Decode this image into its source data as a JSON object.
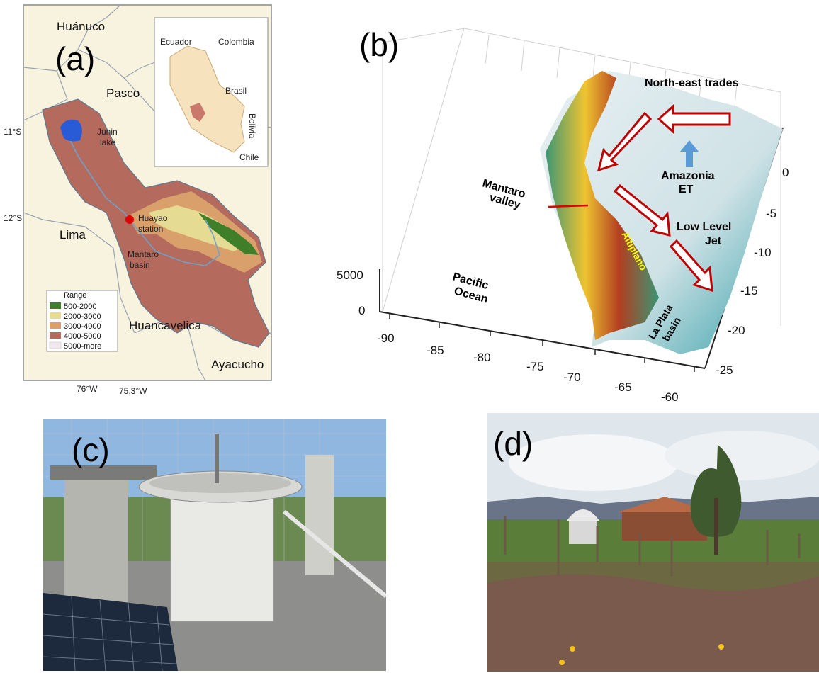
{
  "panel_a": {
    "label": "(a)",
    "regions": {
      "huanuco": "Huánuco",
      "pasco": "Pasco",
      "lima": "Lima",
      "huancavelica": "Huancavelica",
      "ayacucho": "Ayacucho"
    },
    "features": {
      "junin_lake_1": "Junin",
      "junin_lake_2": "lake",
      "station_1": "Huayao",
      "station_2": "station",
      "basin_1": "Mantaro",
      "basin_2": "basin"
    },
    "inset": {
      "ecuador": "Ecuador",
      "colombia": "Colombia",
      "brasil": "Brasil",
      "bolivia": "Bolivia",
      "chile": "Chile"
    },
    "lat_labels": [
      "11°S",
      "12°S"
    ],
    "lon_labels": [
      "76°W",
      "75.3°W"
    ],
    "legend": {
      "title": "Range",
      "items": [
        {
          "label": "500-2000",
          "color": "#3f7f2a"
        },
        {
          "label": "2000-3000",
          "color": "#e6db93"
        },
        {
          "label": "3000-4000",
          "color": "#d9a06b"
        },
        {
          "label": "4000-5000",
          "color": "#b46a5c"
        },
        {
          "label": "5000-more",
          "color": "#f2e9ee"
        }
      ]
    }
  },
  "panel_b": {
    "label": "(b)",
    "annotations": {
      "ne_trades": "North-east trades",
      "amazonia_1": "Amazonia",
      "amazonia_2": "ET",
      "mantaro_1": "Mantaro",
      "mantaro_2": "valley",
      "llj_1": "Low Level",
      "llj_2": "Jet",
      "pacific_1": "Pacific",
      "pacific_2": "Ocean",
      "altiplano": "Altiplano",
      "plata_1": "La Plata",
      "plata_2": "basin"
    },
    "x_ticks": [
      "-90",
      "-85",
      "-80",
      "-75",
      "-70",
      "-65",
      "-60"
    ],
    "y_ticks": [
      "0",
      "-5",
      "-10",
      "-15",
      "-20",
      "-25"
    ],
    "z_ticks": [
      "5000",
      "0"
    ],
    "colors": {
      "arrow": "#c00000",
      "amazonia_arrow": "#5b9bd5",
      "altiplano_text": "#ffff00"
    }
  },
  "panel_c": {
    "label": "(c)"
  },
  "panel_d": {
    "label": "(d)"
  }
}
